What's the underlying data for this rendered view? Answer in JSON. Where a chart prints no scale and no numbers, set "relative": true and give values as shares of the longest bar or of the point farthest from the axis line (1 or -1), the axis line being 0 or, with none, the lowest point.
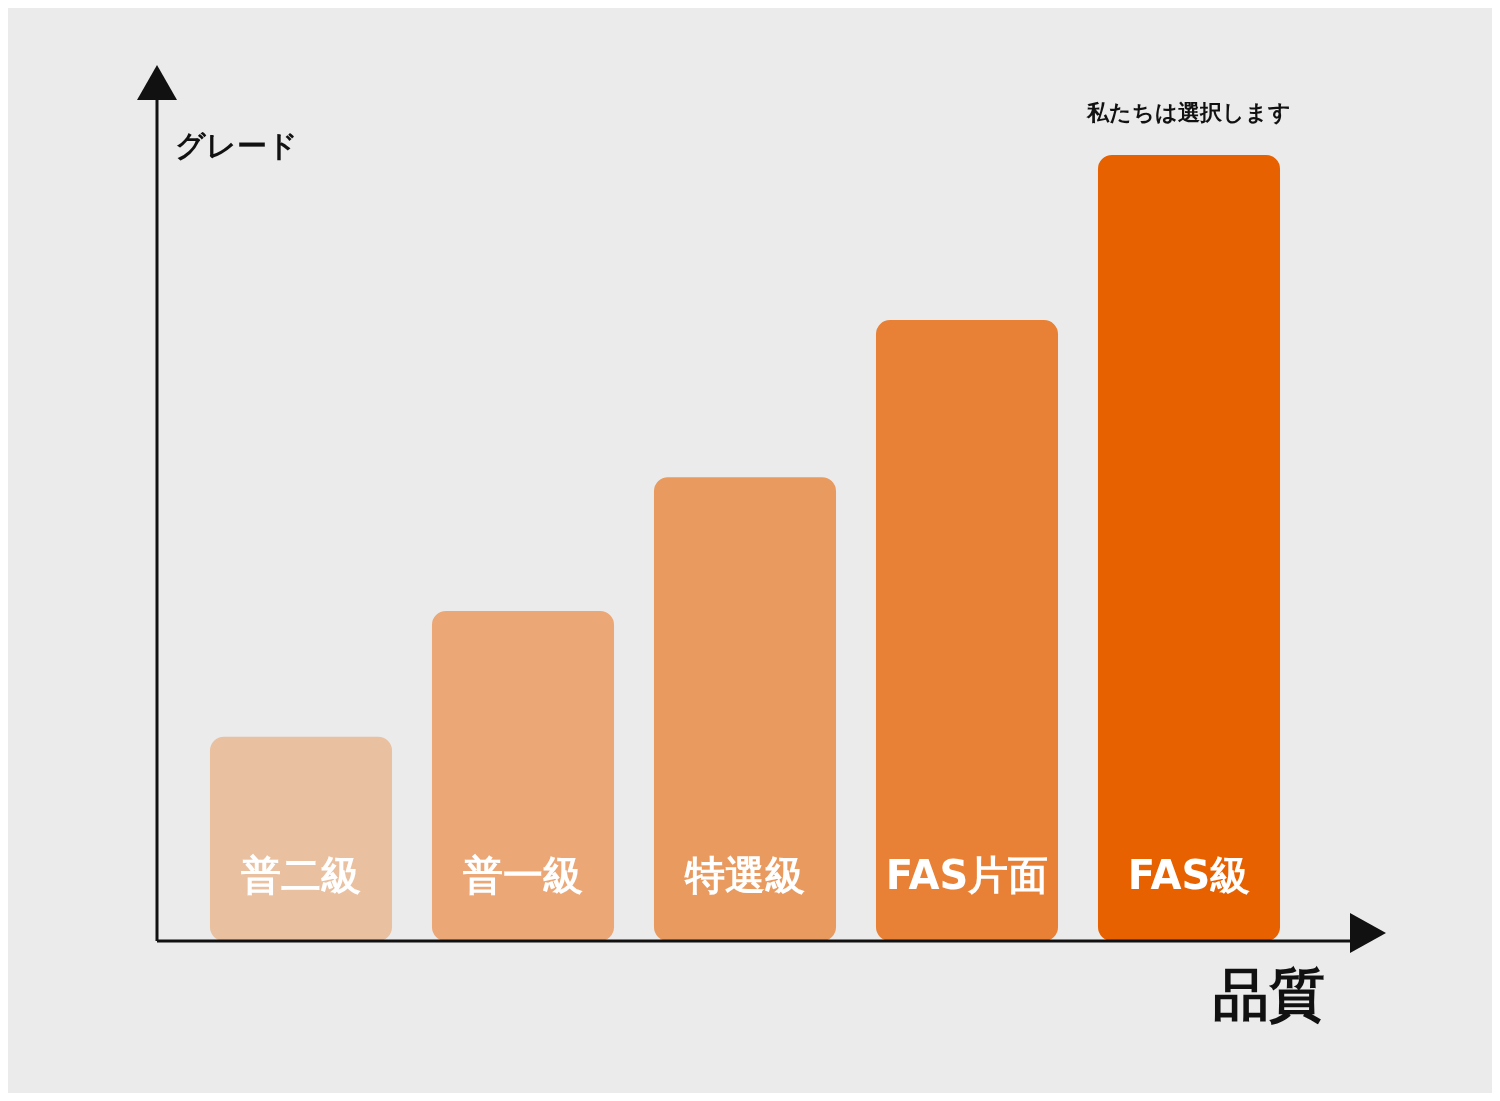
{
  "chart_data": {
    "type": "bar",
    "relative": true,
    "xlabel": "品質",
    "ylabel": "グレード",
    "categories": [
      "普二級",
      "普一級",
      "特選級",
      "FAS片面",
      "FAS級"
    ],
    "values": [
      0.26,
      0.42,
      0.59,
      0.79,
      1
    ],
    "colors": [
      "#e9c0a0",
      "#eba775",
      "#e99a5f",
      "#e88035",
      "#e86100"
    ],
    "annotations": [
      {
        "text": "私たちは選択します",
        "x": "FAS級",
        "y": 1
      }
    ],
    "legend": false
  }
}
